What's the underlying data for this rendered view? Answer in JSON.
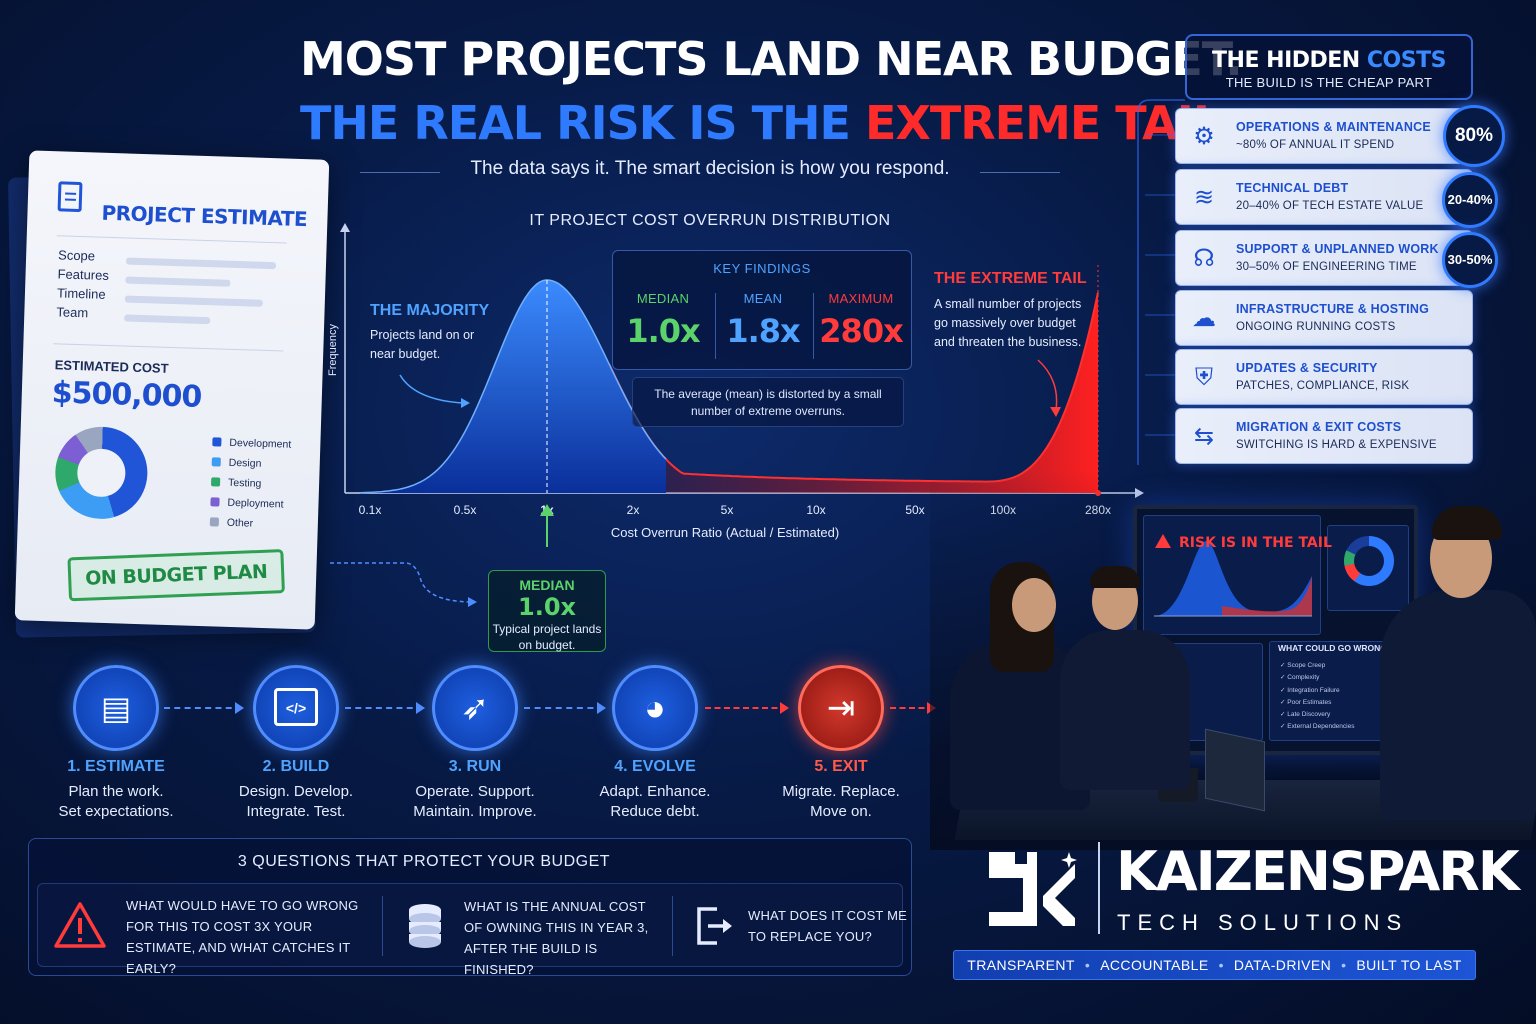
{
  "header": {
    "title_line1": "MOST PROJECTS LAND NEAR BUDGET.",
    "title_line2_part1": "THE REAL RISK IS THE",
    "title_line2_part2": "EXTREME TAIL.",
    "subtitle": "The data says it. The smart decision is how you respond."
  },
  "estimate_doc": {
    "title": "PROJECT ESTIMATE",
    "fields": [
      "Scope",
      "Features",
      "Timeline",
      "Team"
    ],
    "cost_label": "ESTIMATED COST",
    "cost_value": "$500,000",
    "breakdown": [
      {
        "label": "Development",
        "color": "#1f55d6"
      },
      {
        "label": "Design",
        "color": "#3d9cf4"
      },
      {
        "label": "Testing",
        "color": "#2fa86b"
      },
      {
        "label": "Deployment",
        "color": "#7b5fd3"
      },
      {
        "label": "Other",
        "color": "#9aa6bf"
      }
    ],
    "stamp": "ON BUDGET PLAN"
  },
  "chart": {
    "title": "IT PROJECT COST OVERRUN DISTRIBUTION",
    "ylabel": "Frequency",
    "xlabel": "Cost Overrun Ratio (Actual / Estimated)",
    "majority_title": "THE MAJORITY",
    "majority_text": "Projects land on or near budget.",
    "tail_title": "THE EXTREME TAIL",
    "tail_text": "A small number of projects go massively over budget and threaten the business.",
    "findings_title": "KEY FINDINGS",
    "findings": [
      {
        "label": "MEDIAN",
        "value": "1.0x",
        "color": "#5bd36a"
      },
      {
        "label": "MEAN",
        "value": "1.8x",
        "color": "#4fa3ff"
      },
      {
        "label": "MAXIMUM",
        "value": "280x",
        "color": "#ff3b3b"
      }
    ],
    "note": "The average (mean) is distorted by a small number of extreme overruns.",
    "median_callout": {
      "label": "MEDIAN",
      "value": "1.0x",
      "text": "Typical project lands on budget."
    }
  },
  "chart_data": {
    "type": "area",
    "title": "IT PROJECT COST OVERRUN DISTRIBUTION",
    "xlabel": "Cost Overrun Ratio (Actual / Estimated)",
    "ylabel": "Frequency",
    "x_ticks": [
      "0.1x",
      "0.5x",
      "1x",
      "2x",
      "5x",
      "10x",
      "50x",
      "100x",
      "280x"
    ],
    "x_scale": "log",
    "peak_at": "1x",
    "median": 1.0,
    "mean": 1.8,
    "maximum": 280
  },
  "hidden_costs": {
    "title_part1": "THE HIDDEN",
    "title_part2": "COSTS",
    "subtitle": "THE BUILD IS THE CHEAP PART",
    "items": [
      {
        "name": "OPERATIONS & MAINTENANCE",
        "desc": "~80% OF ANNUAL IT SPEND",
        "badge": "80%",
        "icon": "gear-icon",
        "glyph": "⚙"
      },
      {
        "name": "TECHNICAL DEBT",
        "desc": "20–40% OF TECH ESTATE VALUE",
        "badge": "20-40%",
        "icon": "layers-icon",
        "glyph": "≋"
      },
      {
        "name": "SUPPORT & UNPLANNED WORK",
        "desc": "30–50% OF ENGINEERING TIME",
        "badge": "30-50%",
        "icon": "headset-icon",
        "glyph": "☊"
      },
      {
        "name": "INFRASTRUCTURE & HOSTING",
        "desc": "ONGOING RUNNING COSTS",
        "badge": "",
        "icon": "cloud-icon",
        "glyph": "☁"
      },
      {
        "name": "UPDATES & SECURITY",
        "desc": "PATCHES, COMPLIANCE, RISK",
        "badge": "",
        "icon": "shield-icon",
        "glyph": "⛨"
      },
      {
        "name": "MIGRATION & EXIT COSTS",
        "desc": "SWITCHING IS HARD & EXPENSIVE",
        "badge": "",
        "icon": "exchange-dollar-icon",
        "glyph": "⇆"
      }
    ]
  },
  "steps": [
    {
      "title": "1. ESTIMATE",
      "line1": "Plan the work.",
      "line2": "Set expectations.",
      "icon": "document-icon",
      "glyph": "▤"
    },
    {
      "title": "2. BUILD",
      "line1": "Design. Develop.",
      "line2": "Integrate. Test.",
      "icon": "code-window-icon",
      "glyph": "</>"
    },
    {
      "title": "3. RUN",
      "line1": "Operate. Support.",
      "line2": "Maintain. Improve.",
      "icon": "rocket-icon",
      "glyph": "➶"
    },
    {
      "title": "4. EVOLVE",
      "line1": "Adapt. Enhance.",
      "line2": "Reduce debt.",
      "icon": "pie-chart-icon",
      "glyph": "◕"
    },
    {
      "title": "5. EXIT",
      "line1": "Migrate. Replace.",
      "line2": "Move on.",
      "icon": "exit-door-icon",
      "glyph": "⇥"
    }
  ],
  "questions": {
    "title": "3 QUESTIONS THAT PROTECT YOUR BUDGET",
    "items": [
      {
        "text": "WHAT WOULD HAVE TO GO WRONG FOR THIS TO COST 3X YOUR ESTIMATE, AND WHAT CATCHES IT EARLY?",
        "icon": "warning-icon"
      },
      {
        "text": "WHAT IS THE ANNUAL COST OF OWNING THIS IN YEAR 3, AFTER THE BUILD IS FINISHED?",
        "icon": "coins-icon"
      },
      {
        "text": "WHAT DOES IT COST ME TO REPLACE YOU?",
        "icon": "exit-icon"
      }
    ]
  },
  "monitor": {
    "alert": "RISK IS IN THE TAIL",
    "list_title": "WHAT COULD GO WRONG?",
    "list": [
      "Scope Creep",
      "Complexity",
      "Integration Failure",
      "Poor Estimates",
      "Late Discovery",
      "External Dependencies"
    ]
  },
  "brand": {
    "name": "KAIZENSPARK",
    "tagline": "TECH SOLUTIONS",
    "values": [
      "TRANSPARENT",
      "ACCOUNTABLE",
      "DATA-DRIVEN",
      "BUILT TO LAST"
    ]
  }
}
